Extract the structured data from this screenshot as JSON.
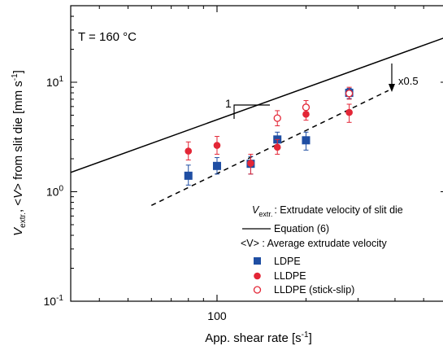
{
  "chart_data": {
    "type": "scatter",
    "annotation": "T = 160 °C",
    "xlabel_text": "App. shear rate [s",
    "xlabel_sup": "-1",
    "xlabel_close": "]",
    "ylabel_v": "V",
    "ylabel_v_sub": "extr.",
    "ylabel_comma": ", <",
    "ylabel_v2": "V",
    "ylabel_rest": "> from slit die [mm s",
    "ylabel_sup": "-1",
    "ylabel_close": "]",
    "x_scale": "log",
    "y_scale": "log",
    "xlim": [
      32,
      600
    ],
    "ylim": [
      0.1,
      50
    ],
    "x_tick_label": "100",
    "y_tick_labels": [
      {
        "base": "10",
        "exp": "-1",
        "value": 0.1
      },
      {
        "base": "10",
        "exp": "0",
        "value": 1
      },
      {
        "base": "10",
        "exp": "1",
        "value": 10
      }
    ],
    "slope_label": "1",
    "shift_label": "x0.5",
    "legend_note_v": "V",
    "legend_note_sub": "extr.",
    "legend_note_text": ": Extrudate velocity of slit die",
    "legend_note2": "<V> : Average extrudate velocity",
    "legend_placement": "bottom-right",
    "series": [
      {
        "name": "Equation (6)",
        "style": "solid-line",
        "color": "#000000",
        "x": [
          32,
          600
        ],
        "y": [
          1.5,
          26
        ]
      },
      {
        "name": "",
        "style": "dashed-line",
        "color": "#000000",
        "x": [
          60,
          380
        ],
        "y": [
          0.75,
          8.4
        ]
      },
      {
        "name": "LDPE",
        "marker": "square",
        "color": "#1f4ea3",
        "x": [
          80,
          100,
          130,
          160,
          200,
          280
        ],
        "y": [
          1.4,
          1.72,
          1.8,
          3.0,
          2.95,
          8.0
        ],
        "err_low": [
          1.15,
          1.45,
          1.45,
          2.5,
          2.4,
          7.1
        ],
        "err_high": [
          1.75,
          2.05,
          2.1,
          3.5,
          3.5,
          8.8
        ]
      },
      {
        "name": "LLDPE",
        "marker": "circle-filled",
        "color": "#e32636",
        "x": [
          80,
          100,
          130,
          160,
          200,
          280
        ],
        "y": [
          2.35,
          2.65,
          1.82,
          2.55,
          5.1,
          5.3
        ],
        "err_low": [
          1.95,
          2.2,
          1.45,
          2.2,
          4.5,
          4.3
        ],
        "err_high": [
          2.85,
          3.2,
          2.2,
          3.0,
          5.8,
          6.3
        ]
      },
      {
        "name": "LLDPE (stick-slip)",
        "marker": "circle-open",
        "color": "#e32636",
        "x": [
          160,
          200,
          280
        ],
        "y": [
          4.7,
          5.9,
          7.9
        ],
        "err_low": [
          4.0,
          5.2,
          7.0
        ],
        "err_high": [
          5.5,
          6.8,
          9.0
        ]
      }
    ]
  }
}
